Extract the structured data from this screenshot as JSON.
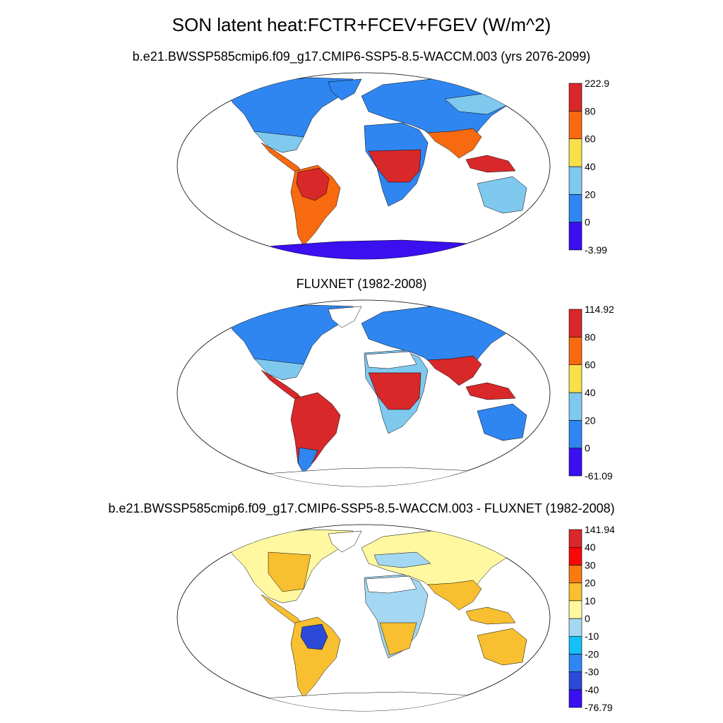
{
  "title": "SON latent heat:FCTR+FCEV+FGEV (W/m^2)",
  "colors": {
    "abs": [
      "#3a0ff0",
      "#2f86f0",
      "#7fc8ee",
      "#f8e04a",
      "#f86a10",
      "#d8282a"
    ],
    "diff": [
      "#3a0ff0",
      "#2b4ad8",
      "#2f86f0",
      "#14c0f5",
      "#a4d8f2",
      "#fff8a0",
      "#f8c030",
      "#f87a10",
      "#f80808",
      "#d8282a"
    ]
  },
  "panels": [
    {
      "id": "model",
      "title": "b.e21.BWSSP585cmip6.f09_g17.CMIP6-SSP5-8.5-WACCM.003 (yrs 2076-2099)",
      "colorbar": {
        "labels": [
          "-3.99",
          "0",
          "20",
          "40",
          "60",
          "80",
          "222.9"
        ]
      }
    },
    {
      "id": "obs",
      "title": "FLUXNET (1982-2008)",
      "colorbar": {
        "labels": [
          "-61.09",
          "0",
          "20",
          "40",
          "60",
          "80",
          "114.92"
        ]
      }
    },
    {
      "id": "diff",
      "title": "b.e21.BWSSP585cmip6.f09_g17.CMIP6-SSP5-8.5-WACCM.003 - FLUXNET (1982-2008)",
      "colorbar": {
        "labels": [
          "-76.79",
          "-40",
          "-30",
          "-20",
          "-10",
          "0",
          "10",
          "20",
          "30",
          "40",
          "141.94"
        ]
      }
    }
  ]
}
